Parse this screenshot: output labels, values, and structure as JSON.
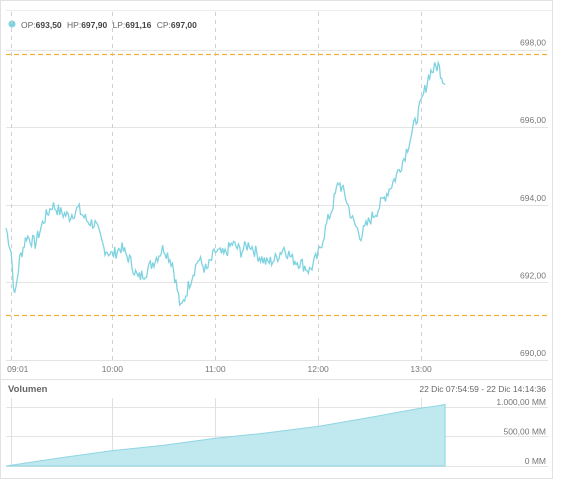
{
  "ohlc_bar": {
    "op_label": "OP:",
    "op_value": "693,50",
    "hp_label": "HP:",
    "hp_value": "697,90",
    "lp_label": "LP:",
    "lp_value": "691,16",
    "cp_label": "CP:",
    "cp_value": "697,00"
  },
  "volume_section": {
    "title": "Volumen",
    "range_text": "22 Dic 07:54:59 - 22 Dic 14:14:36"
  },
  "colors": {
    "line": "#7fd3e0",
    "area": "#bfe8ef",
    "guide": "#f0b13a",
    "marker": "#7fd3e0"
  },
  "chart_data": [
    {
      "type": "line",
      "x_ticks": [
        "09:01",
        "10:00",
        "11:00",
        "12:00",
        "13:00"
      ],
      "y_ticks": [
        "690,00",
        "692,00",
        "694,00",
        "696,00",
        "698,00"
      ],
      "ylim": [
        690,
        698.3
      ],
      "xlim": [
        "08:58",
        "14:14"
      ],
      "guide_lines": [
        697.9,
        691.16
      ],
      "series": [
        {
          "x": [
            "08:58",
            "09:01",
            "09:03",
            "09:06",
            "09:10",
            "09:15",
            "09:20",
            "09:25",
            "09:30",
            "09:35",
            "09:40",
            "09:45",
            "09:50",
            "09:55",
            "10:00",
            "10:05",
            "10:10",
            "10:15",
            "10:20",
            "10:25",
            "10:30",
            "10:35",
            "10:40",
            "10:45",
            "10:50",
            "10:55",
            "11:00",
            "11:05",
            "11:10",
            "11:15",
            "11:20",
            "11:25",
            "11:30",
            "11:35",
            "11:40",
            "11:45",
            "11:50",
            "11:55",
            "12:00",
            "12:05",
            "12:08",
            "12:12",
            "12:16",
            "12:20",
            "12:25",
            "12:30",
            "12:35",
            "12:40",
            "12:45",
            "12:50",
            "12:55",
            "13:00",
            "13:05",
            "13:10",
            "13:14"
          ],
          "values": [
            693.4,
            692.8,
            691.6,
            692.6,
            693.2,
            693.0,
            693.6,
            694.0,
            693.8,
            693.7,
            693.9,
            693.6,
            693.5,
            692.9,
            692.7,
            692.9,
            692.6,
            692.1,
            692.3,
            692.6,
            692.9,
            692.5,
            691.3,
            692.0,
            692.6,
            692.3,
            692.8,
            692.7,
            693.0,
            692.8,
            693.0,
            692.7,
            692.5,
            692.6,
            692.9,
            692.6,
            692.5,
            692.3,
            692.7,
            693.5,
            693.9,
            694.6,
            694.2,
            693.6,
            693.2,
            693.6,
            693.9,
            694.3,
            694.7,
            695.2,
            695.9,
            696.6,
            697.4,
            697.6,
            697.1
          ]
        }
      ]
    },
    {
      "type": "area",
      "title": "Volumen",
      "y_ticks": [
        "0 MM",
        "500,00 MM",
        "1.000,00 MM"
      ],
      "ylim": [
        0,
        1150
      ],
      "series": [
        {
          "x": [
            "08:58",
            "09:30",
            "10:00",
            "10:30",
            "11:00",
            "11:30",
            "12:00",
            "12:30",
            "13:00",
            "13:10",
            "13:14"
          ],
          "values": [
            0,
            140,
            260,
            350,
            470,
            560,
            670,
            820,
            980,
            1020,
            1040
          ]
        }
      ]
    }
  ]
}
